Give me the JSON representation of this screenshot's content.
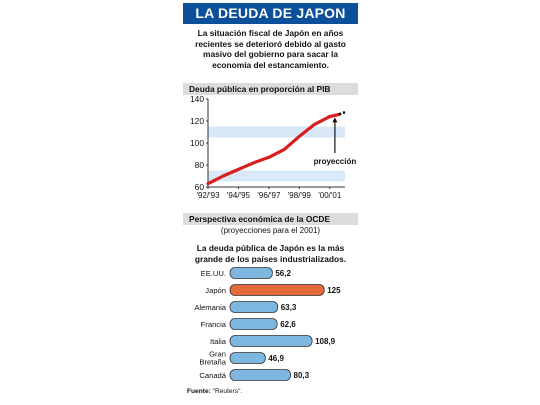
{
  "title": "LA DEUDA DE JAPON",
  "intro": "La situación fiscal de Japón en años recientes se deterioró debido al gasto masivo del gobierno para sacar la economía del estancamiento.",
  "colors": {
    "title_bg": "#0c4f9a",
    "line": "#d81e1e",
    "band": "#d9e8f6",
    "bar_blue": "#7db7e0",
    "bar_japan": "#e46a3c"
  },
  "chart_data": [
    {
      "type": "line",
      "title": "Deuda pública en proporción al PIB",
      "ylim": [
        60,
        140
      ],
      "yticks": [
        60,
        80,
        100,
        120,
        140
      ],
      "xlim": [
        1992,
        2001
      ],
      "xticks": [
        {
          "label": "'92/'93",
          "x": 1992
        },
        {
          "label": "'94/'95",
          "x": 1994
        },
        {
          "label": "'96/'97",
          "x": 1996
        },
        {
          "label": "'98/'99",
          "x": 1998
        },
        {
          "label": "'00/'01",
          "x": 2000
        }
      ],
      "series": [
        {
          "x": [
            1992,
            1993,
            1994,
            1995,
            1996,
            1997,
            1998,
            1999,
            2000,
            2000.6
          ],
          "y": [
            63,
            70,
            76,
            82,
            87,
            94,
            106,
            117,
            124,
            126
          ]
        }
      ],
      "projection": {
        "x": [
          2000.6,
          2001
        ],
        "y": [
          126,
          128
        ]
      },
      "annotation": "proyección"
    },
    {
      "type": "bar",
      "orientation": "horizontal",
      "title": "Perspectiva económica de la OCDE",
      "subtitle": "(proyecciones para el 2001)",
      "heading": "La deuda pública de Japón es la más grande de los países industrializados.",
      "categories": [
        "EE.UU.",
        "Japón",
        "Alemania",
        "Francia",
        "Italia",
        "Gran Bretaña",
        "Canadá"
      ],
      "values": [
        56.2,
        125,
        63.3,
        62.6,
        108.9,
        46.9,
        80.3
      ],
      "value_labels": [
        "56,2",
        "125",
        "63,3",
        "62,6",
        "108,9",
        "46,9",
        "80,3"
      ],
      "highlight": "Japón",
      "xlim": [
        0,
        130
      ]
    }
  ],
  "source_label": "Fuente:",
  "source_value": "\"Reuters\"."
}
